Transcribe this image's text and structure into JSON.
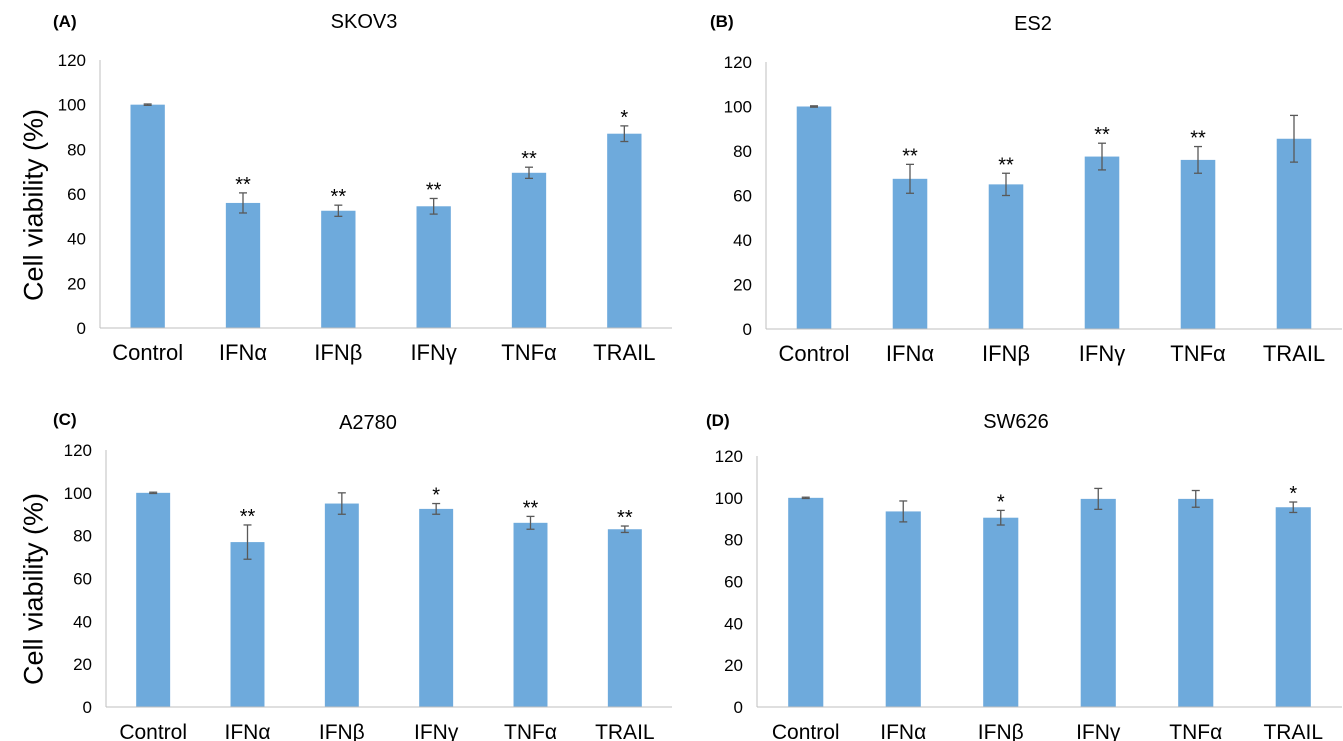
{
  "colors": {
    "bar": "#6eaadc",
    "axis": "#bfbfbf",
    "errorbar": "#595959",
    "text": "#000000"
  },
  "chart_data": [
    {
      "panel": "(A)",
      "type": "bar",
      "title": "SKOV3",
      "ylabel": "Cell viability (%)",
      "ylim": [
        0,
        120
      ],
      "yticks": [
        "0",
        "20",
        "40",
        "60",
        "80",
        "100",
        "120"
      ],
      "categories": [
        "Control",
        "IFNα",
        "IFNβ",
        "IFNγ",
        "TNFα",
        "TRAIL"
      ],
      "values": [
        100,
        56,
        52.5,
        54.5,
        69.5,
        87
      ],
      "errors": [
        0.3,
        4.5,
        2.5,
        3.5,
        2.5,
        3.5
      ],
      "annotations": [
        "",
        "**",
        "**",
        "**",
        "**",
        "*"
      ],
      "grid": false,
      "legend": "none"
    },
    {
      "panel": "(B)",
      "type": "bar",
      "title": "ES2",
      "ylabel": "",
      "ylim": [
        0,
        120
      ],
      "yticks": [
        "0",
        "20",
        "40",
        "60",
        "80",
        "100",
        "120"
      ],
      "categories": [
        "Control",
        "IFNα",
        "IFNβ",
        "IFNγ",
        "TNFα",
        "TRAIL"
      ],
      "values": [
        100,
        67.5,
        65,
        77.5,
        76,
        85.5
      ],
      "errors": [
        0.3,
        6.5,
        5,
        6,
        6,
        10.5
      ],
      "annotations": [
        "",
        "**",
        "**",
        "**",
        "**",
        ""
      ],
      "grid": false,
      "legend": "none"
    },
    {
      "panel": "(C)",
      "type": "bar",
      "title": "A2780",
      "ylabel": "Cell viability (%)",
      "ylim": [
        0,
        120
      ],
      "yticks": [
        "0",
        "20",
        "40",
        "60",
        "80",
        "100",
        "120"
      ],
      "categories": [
        "Control",
        "IFNα",
        "IFNβ",
        "IFNγ",
        "TNFα",
        "TRAIL"
      ],
      "values": [
        100,
        77,
        95,
        92.5,
        86,
        83
      ],
      "errors": [
        0.3,
        8,
        5,
        2.5,
        3,
        1.5
      ],
      "annotations": [
        "",
        "**",
        "",
        "*",
        "**",
        "**"
      ],
      "grid": false,
      "legend": "none"
    },
    {
      "panel": "(D)",
      "type": "bar",
      "title": "SW626",
      "ylabel": "",
      "ylim": [
        0,
        120
      ],
      "yticks": [
        "0",
        "20",
        "40",
        "60",
        "80",
        "100",
        "120"
      ],
      "categories": [
        "Control",
        "IFNα",
        "IFNβ",
        "IFNγ",
        "TNFα",
        "TRAIL"
      ],
      "values": [
        100,
        93.5,
        90.5,
        99.5,
        99.5,
        95.5
      ],
      "errors": [
        0.3,
        5,
        3.5,
        5,
        4,
        2.5
      ],
      "annotations": [
        "",
        "",
        "*",
        "",
        "",
        "*"
      ],
      "grid": false,
      "legend": "none"
    }
  ]
}
